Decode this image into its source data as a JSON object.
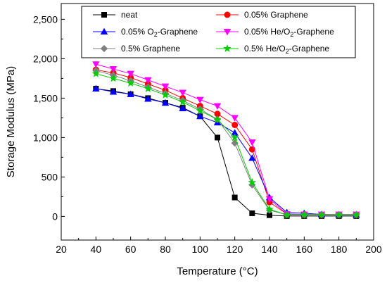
{
  "chart_data": {
    "type": "line",
    "title": "",
    "xlabel": "Temperature (°C)",
    "ylabel": "Storage Modulus (MPa)",
    "xlim": [
      20,
      200
    ],
    "ylim": [
      -300,
      2700
    ],
    "x_ticks": [
      20,
      40,
      60,
      80,
      100,
      120,
      140,
      160,
      180,
      200
    ],
    "y_ticks": [
      0,
      500,
      1000,
      1500,
      2000,
      2500
    ],
    "x_tick_labels": [
      "20",
      "40",
      "60",
      "80",
      "100",
      "120",
      "140",
      "160",
      "180",
      "200"
    ],
    "y_tick_labels": [
      "0",
      "500",
      "1,000",
      "1,500",
      "2,000",
      "2,500"
    ],
    "grid": false,
    "legend_position": "top",
    "x": [
      40,
      50,
      60,
      70,
      80,
      90,
      100,
      110,
      120,
      130,
      140,
      150,
      160,
      170,
      180,
      190
    ],
    "series": [
      {
        "name": "neat",
        "color": "#000000",
        "marker": "square",
        "values": [
          1620,
          1590,
          1550,
          1500,
          1440,
          1380,
          1270,
          1000,
          240,
          40,
          15,
          5,
          5,
          5,
          5,
          5
        ]
      },
      {
        "name": "0.05% Graphene",
        "color": "#ff0000",
        "marker": "circle",
        "values": [
          1860,
          1820,
          1760,
          1680,
          1600,
          1500,
          1400,
          1300,
          1160,
          850,
          180,
          30,
          25,
          20,
          20,
          20
        ]
      },
      {
        "name": "0.05% O2-Graphene",
        "sub": "2",
        "color": "#0000ff",
        "marker": "triangle-up",
        "values": [
          1620,
          1580,
          1550,
          1490,
          1440,
          1370,
          1270,
          1190,
          1060,
          740,
          240,
          50,
          40,
          25,
          20,
          20
        ]
      },
      {
        "name": "0.05% He/O2-Graphene",
        "sub": "2",
        "color": "#ff00ff",
        "marker": "triangle-down",
        "values": [
          1930,
          1870,
          1810,
          1730,
          1650,
          1570,
          1480,
          1400,
          1250,
          940,
          220,
          30,
          25,
          25,
          25,
          25
        ]
      },
      {
        "name": "0.5% Graphene",
        "color": "#808080",
        "marker": "diamond",
        "values": [
          1850,
          1790,
          1720,
          1640,
          1560,
          1470,
          1360,
          1230,
          930,
          400,
          80,
          20,
          20,
          20,
          20,
          20
        ]
      },
      {
        "name": "0.5% He/O2-Graphene",
        "sub": "2",
        "color": "#00cc00",
        "marker": "star",
        "values": [
          1810,
          1750,
          1690,
          1620,
          1540,
          1450,
          1340,
          1230,
          1000,
          430,
          90,
          20,
          20,
          20,
          20,
          20
        ]
      }
    ]
  }
}
